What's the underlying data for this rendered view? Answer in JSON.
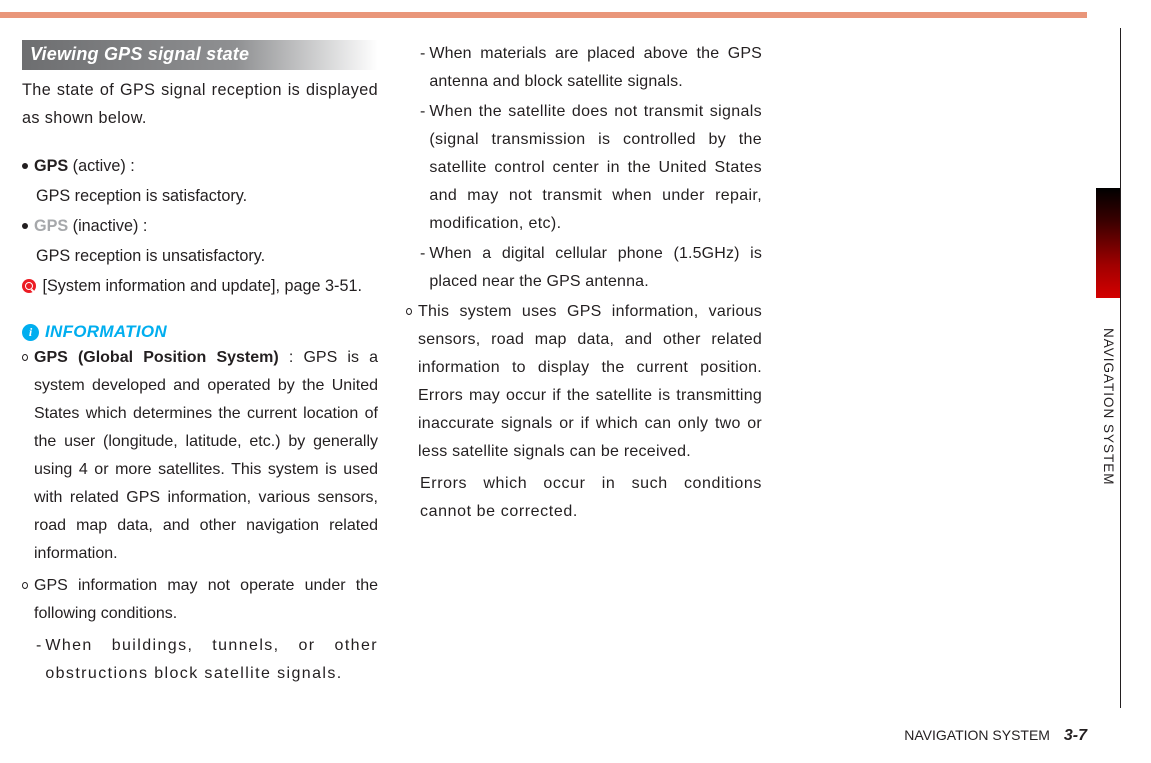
{
  "topbar_color": "#e9967a",
  "section_header": "Viewing GPS signal state",
  "intro": "The state of GPS signal reception is displayed as shown below.",
  "gps_active_label": "GPS",
  "gps_active_suffix": " (active) :",
  "gps_active_desc": "GPS reception is satisfactory.",
  "gps_inactive_label": "GPS",
  "gps_inactive_suffix": " (inactive) :",
  "gps_inactive_desc": "GPS reception is unsatisfactory.",
  "ref_text": " [System information and update], page 3-51.",
  "info_title": "INFORMATION",
  "info_items": [
    {
      "lead_bold": "GPS (Global Position System)",
      "lead_rest": " : GPS is a system developed and operated by the United States which determines the current location of the user (longitude, latitude, etc.) by generally using 4 or more satellites.  This system is used with related GPS information, various sensors, road map data, and other navigation related information."
    },
    {
      "lead_bold": "",
      "lead_rest": "GPS information may not operate under the following conditions.",
      "subs": [
        "When buildings, tunnels, or other obstructions block satellite signals.",
        "When materials are placed above the GPS antenna and block satellite signals.",
        "When the satellite does not transmit signals (signal transmission is controlled by the satellite control center in the United States and may not transmit when under repair, modification, etc).",
        "When a digital cellular phone (1.5GHz) is placed near the GPS antenna."
      ]
    },
    {
      "lead_bold": "",
      "lead_rest": "This system uses GPS information, various sensors, road map data, and other related information to display the current position. Errors may occur if the satellite is transmitting inaccurate signals or if which can only two or less satellite signals can be received.",
      "trailer": "Errors which occur in such conditions cannot be corrected."
    }
  ],
  "side_label": "NAVIGATION SYSTEM",
  "footer_label": "NAVIGATION SYSTEM",
  "footer_page": "3-7",
  "colors": {
    "header_grad_start": "#6d6e70",
    "info_blue": "#00aeef",
    "ref_red": "#ec1c24",
    "gps_inactive": "#a6a8ab"
  }
}
